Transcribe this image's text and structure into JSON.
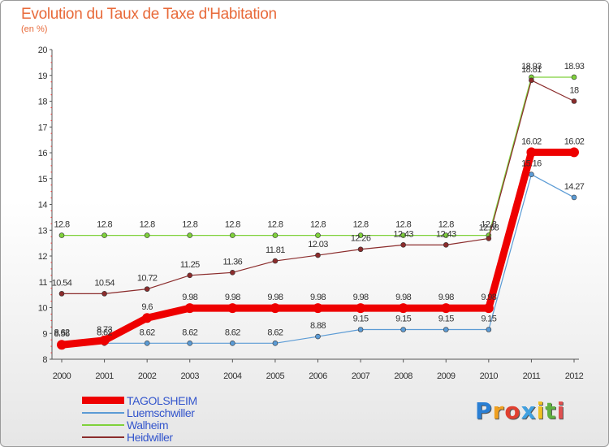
{
  "title": "Evolution du Taux de Taxe d'Habitation",
  "unit": "(en %)",
  "logo": {
    "text": "Proxiti",
    "letters": [
      "P",
      "r",
      "o",
      "x",
      "i",
      "t",
      "i"
    ],
    "colors": [
      "#2a7fd4",
      "#f0a020",
      "#e04030",
      "#40a0e0",
      "#f0c020",
      "#60b040",
      "#e05050"
    ]
  },
  "chart_data": {
    "type": "line",
    "title": "Evolution du Taux de Taxe d'Habitation",
    "ylabel": "(en %)",
    "xlabel": "",
    "ylim": [
      8,
      20
    ],
    "yticks": [
      8,
      9,
      10,
      11,
      12,
      13,
      14,
      15,
      16,
      17,
      18,
      19,
      20
    ],
    "x": [
      "2000",
      "2001",
      "2002",
      "2003",
      "2004",
      "2005",
      "2006",
      "2007",
      "2008",
      "2009",
      "2010",
      "2011",
      "2012"
    ],
    "grid": false,
    "legend": "bottom-left",
    "series": [
      {
        "name": "TAGOLSHEIM",
        "color": "#ee0000",
        "values": [
          8.56,
          8.73,
          9.6,
          9.98,
          9.98,
          9.98,
          9.98,
          9.98,
          9.98,
          9.98,
          9.98,
          16.02,
          16.02
        ],
        "labels": [
          "8.56",
          "8.73",
          "9.6",
          "9.98",
          "9.98",
          "9.98",
          "9.98",
          "9.98",
          "9.98",
          "9.98",
          "9.98",
          "16.02",
          "16.02"
        ]
      },
      {
        "name": "Luemschwiller",
        "color": "#5b9bd5",
        "values": [
          8.62,
          8.62,
          8.62,
          8.62,
          8.62,
          8.62,
          8.88,
          9.15,
          9.15,
          9.15,
          9.15,
          15.16,
          14.27
        ],
        "labels": [
          "8.62",
          "8.62",
          "8.62",
          "8.62",
          "8.62",
          "8.62",
          "8.88",
          "9.15",
          "9.15",
          "9.15",
          "9.15",
          "15.16",
          "14.27"
        ]
      },
      {
        "name": "Walheim",
        "color": "#7fd13b",
        "values": [
          12.8,
          12.8,
          12.8,
          12.8,
          12.8,
          12.8,
          12.8,
          12.8,
          12.8,
          12.8,
          12.8,
          18.93,
          18.93
        ],
        "labels": [
          "12.8",
          "12.8",
          "12.8",
          "12.8",
          "12.8",
          "12.8",
          "12.8",
          "12.8",
          "12.8",
          "12.8",
          "12.8",
          "18.93",
          "18.93"
        ]
      },
      {
        "name": "Heidwiller",
        "color": "#8b2c2c",
        "values": [
          10.54,
          10.54,
          10.72,
          11.25,
          11.36,
          11.81,
          12.03,
          12.26,
          12.43,
          12.43,
          12.68,
          18.81,
          18
        ],
        "labels": [
          "10.54",
          "10.54",
          "10.72",
          "11.25",
          "11.36",
          "11.81",
          "12.03",
          "12.26",
          "12.43",
          "12.43",
          "12.68",
          "18.81",
          "18"
        ]
      }
    ]
  }
}
